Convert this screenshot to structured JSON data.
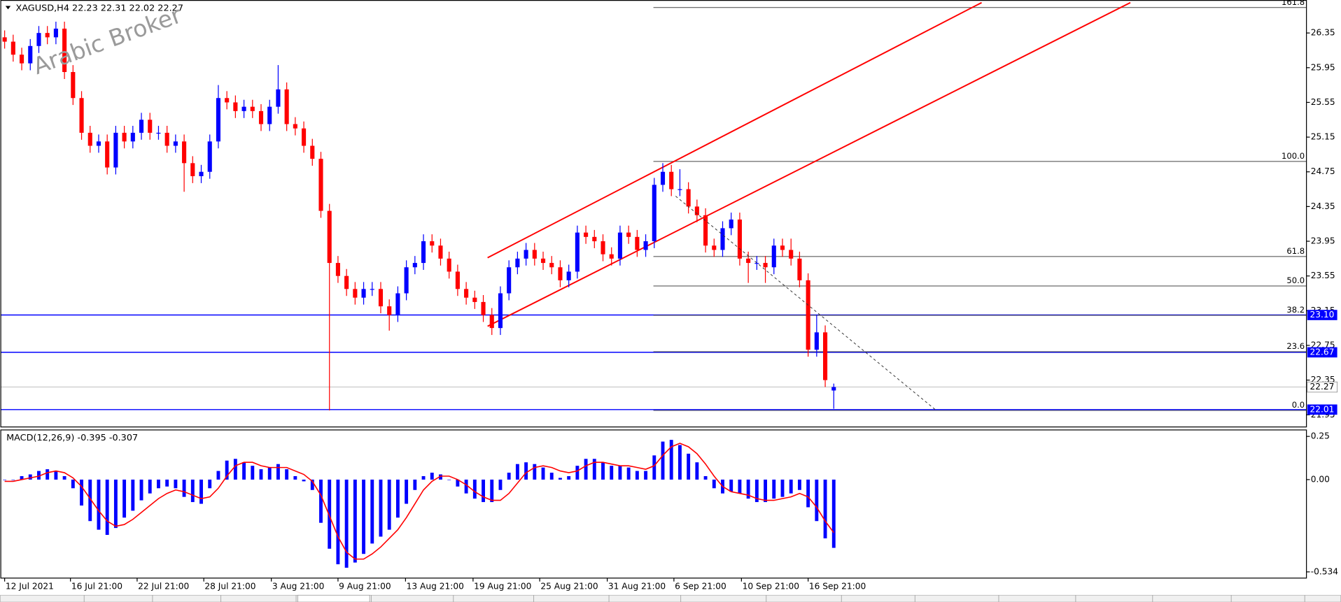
{
  "chart_data": {
    "type": "candlestick",
    "symbol_info": "XAGUSD,H4  22.23 22.31 22.02 22.27",
    "watermark": "Arabic Broker",
    "xlim": [
      -0.5,
      152.3
    ],
    "xticks": [
      {
        "value": 0,
        "label": "12 Jul 2021"
      },
      {
        "value": 7.7,
        "label": "16 Jul 21:00"
      },
      {
        "value": 15.5,
        "label": "22 Jul 21:00"
      },
      {
        "value": 23.3,
        "label": "28 Jul 21:00"
      },
      {
        "value": 31.2,
        "label": "3 Aug 21:00"
      },
      {
        "value": 39,
        "label": "9 Aug 21:00"
      },
      {
        "value": 46.9,
        "label": "13 Aug 21:00"
      },
      {
        "value": 54.8,
        "label": "19 Aug 21:00"
      },
      {
        "value": 62.6,
        "label": "25 Aug 21:00"
      },
      {
        "value": 70.5,
        "label": "31 Aug 21:00"
      },
      {
        "value": 78.3,
        "label": "6 Sep 21:00"
      },
      {
        "value": 86.2,
        "label": "10 Sep 21:00"
      },
      {
        "value": 94,
        "label": "16 Sep 21:00"
      }
    ],
    "ylim": [
      21.81,
      26.73
    ],
    "yticks": [
      26.35,
      25.95,
      25.55,
      25.15,
      24.75,
      24.35,
      23.95,
      23.55,
      23.15,
      22.75,
      22.35,
      21.95
    ],
    "up_color": "#0000ff",
    "down_color": "#ff0000",
    "open": [
      26.3,
      26.25,
      26.1,
      26.0,
      26.2,
      26.35,
      26.3,
      26.4,
      25.9,
      25.6,
      25.2,
      25.05,
      25.1,
      24.8,
      25.2,
      25.1,
      25.2,
      25.35,
      25.2,
      25.2,
      25.05,
      25.1,
      24.85,
      24.7,
      24.75,
      25.1,
      25.6,
      25.55,
      25.45,
      25.5,
      25.45,
      25.3,
      25.5,
      25.7,
      25.3,
      25.25,
      25.05,
      24.9,
      24.3,
      23.7,
      23.55,
      23.4,
      23.3,
      23.4,
      23.4,
      23.2,
      23.1,
      23.35,
      23.65,
      23.7,
      23.95,
      23.9,
      23.75,
      23.6,
      23.4,
      23.3,
      23.25,
      23.1,
      22.95,
      23.35,
      23.65,
      23.75,
      23.85,
      23.75,
      23.7,
      23.65,
      23.5,
      23.6,
      24.05,
      24.0,
      23.95,
      23.8,
      23.75,
      24.05,
      24.0,
      23.85,
      23.95,
      24.6,
      24.75,
      24.55,
      24.55,
      24.35,
      24.25,
      23.9,
      23.85,
      24.1,
      24.2,
      23.75,
      23.7,
      23.7,
      23.65,
      23.9,
      23.85,
      23.75,
      23.5,
      22.7,
      22.9,
      22.23
    ],
    "high": [
      26.38,
      26.33,
      26.18,
      26.28,
      26.43,
      26.43,
      26.48,
      26.48,
      25.98,
      25.68,
      25.28,
      25.18,
      25.18,
      25.28,
      25.28,
      25.28,
      25.43,
      25.43,
      25.28,
      25.28,
      25.18,
      25.18,
      24.93,
      24.83,
      25.18,
      25.75,
      25.68,
      25.63,
      25.58,
      25.58,
      25.53,
      25.58,
      25.98,
      25.78,
      25.38,
      25.33,
      25.13,
      24.98,
      24.38,
      23.78,
      23.63,
      23.48,
      23.48,
      23.48,
      23.48,
      23.28,
      23.43,
      23.73,
      23.78,
      24.03,
      24.03,
      23.98,
      23.83,
      23.68,
      23.48,
      23.38,
      23.33,
      23.18,
      23.43,
      23.73,
      23.83,
      23.93,
      23.93,
      23.83,
      23.78,
      23.73,
      23.68,
      24.13,
      24.13,
      24.08,
      24.03,
      23.88,
      24.13,
      24.13,
      24.08,
      24.03,
      24.68,
      24.85,
      24.83,
      24.78,
      24.63,
      24.43,
      24.33,
      23.98,
      24.18,
      24.28,
      24.28,
      23.83,
      23.78,
      23.78,
      23.98,
      23.98,
      23.98,
      23.83,
      23.58,
      23.1,
      22.98,
      22.31
    ],
    "low": [
      26.17,
      26.02,
      25.92,
      25.92,
      26.12,
      26.22,
      26.22,
      25.82,
      25.52,
      25.12,
      24.97,
      24.97,
      24.72,
      24.72,
      25.02,
      25.02,
      25.12,
      25.12,
      25.12,
      24.97,
      24.97,
      24.52,
      24.62,
      24.62,
      24.67,
      25.02,
      25.47,
      25.37,
      25.37,
      25.37,
      25.22,
      25.22,
      25.42,
      25.22,
      25.17,
      24.97,
      24.82,
      24.22,
      22.0,
      23.47,
      23.32,
      23.22,
      23.22,
      23.32,
      23.12,
      22.92,
      23.02,
      23.27,
      23.57,
      23.62,
      23.82,
      23.67,
      23.52,
      23.32,
      23.22,
      23.17,
      23.02,
      22.87,
      22.87,
      23.27,
      23.57,
      23.67,
      23.67,
      23.62,
      23.57,
      23.42,
      23.42,
      23.52,
      23.92,
      23.87,
      23.72,
      23.67,
      23.67,
      23.92,
      23.77,
      23.77,
      23.87,
      24.52,
      24.47,
      24.47,
      24.27,
      24.17,
      23.82,
      23.77,
      23.77,
      24.02,
      23.67,
      23.47,
      23.62,
      23.47,
      23.57,
      23.77,
      23.67,
      23.42,
      22.62,
      22.62,
      22.27,
      22.02
    ],
    "close": [
      26.25,
      26.1,
      26.0,
      26.2,
      26.35,
      26.3,
      26.4,
      25.9,
      25.6,
      25.2,
      25.05,
      25.1,
      24.8,
      25.2,
      25.1,
      25.2,
      25.35,
      25.2,
      25.2,
      25.05,
      25.1,
      24.85,
      24.7,
      24.75,
      25.1,
      25.6,
      25.55,
      25.45,
      25.5,
      25.45,
      25.3,
      25.5,
      25.7,
      25.3,
      25.25,
      25.05,
      24.9,
      24.3,
      23.7,
      23.55,
      23.4,
      23.3,
      23.4,
      23.4,
      23.2,
      23.1,
      23.35,
      23.65,
      23.7,
      23.95,
      23.9,
      23.75,
      23.6,
      23.4,
      23.3,
      23.25,
      23.1,
      22.95,
      23.35,
      23.65,
      23.75,
      23.85,
      23.75,
      23.7,
      23.65,
      23.5,
      23.6,
      24.05,
      24.0,
      23.95,
      23.8,
      23.75,
      24.05,
      24.0,
      23.85,
      23.95,
      24.6,
      24.75,
      24.55,
      24.55,
      24.35,
      24.25,
      23.9,
      23.85,
      24.1,
      24.2,
      23.75,
      23.7,
      23.7,
      23.65,
      23.9,
      23.85,
      23.75,
      23.5,
      22.7,
      22.9,
      22.35,
      22.27
    ],
    "levels": [
      {
        "value": 23.1,
        "label": "23.10",
        "color": "#0000ff"
      },
      {
        "value": 22.67,
        "label": "22.67",
        "color": "#0000ff"
      },
      {
        "value": 22.01,
        "label": "22.01",
        "color": "#0000ff"
      }
    ],
    "current_price": 22.27,
    "fibonacci": {
      "high": 24.87,
      "low": 22.0,
      "start": 75.9,
      "levels": [
        161.8,
        {
          "value": 100,
          "label": "100.0"
        },
        61.8,
        {
          "value": 50,
          "label": "50.0"
        },
        38.2,
        23.6,
        {
          "value": 0,
          "label": "0.0"
        }
      ]
    },
    "channels": [
      {
        "color": "#ff0000",
        "points": [
          [
            56.5,
            22.97
          ],
          [
            131.7,
            26.7
          ]
        ]
      },
      {
        "color": "#ff0000",
        "points": [
          [
            56.5,
            23.76
          ],
          [
            114.3,
            26.7
          ]
        ]
      }
    ],
    "trendline": {
      "dashed": true,
      "points": [
        [
          78.5,
          24.47
        ],
        [
          109,
          22.0
        ]
      ]
    },
    "macd": {
      "title": "MACD(12,26,9) -0.395 -0.307",
      "ylim": [
        -0.57,
        0.28
      ],
      "yticks": [
        0.25,
        {
          "value": 0,
          "label": "0.00"
        },
        -0.534
      ],
      "histogram": {
        "color": "#0000ff",
        "values": [
          0.0,
          0.0,
          0.02,
          0.03,
          0.05,
          0.06,
          0.05,
          0.02,
          -0.05,
          -0.15,
          -0.24,
          -0.29,
          -0.32,
          -0.28,
          -0.22,
          -0.18,
          -0.12,
          -0.08,
          -0.05,
          -0.04,
          -0.05,
          -0.1,
          -0.13,
          -0.14,
          -0.05,
          0.05,
          0.11,
          0.12,
          0.1,
          0.08,
          0.06,
          0.07,
          0.09,
          0.06,
          0.02,
          -0.01,
          -0.06,
          -0.25,
          -0.4,
          -0.49,
          -0.51,
          -0.48,
          -0.43,
          -0.37,
          -0.33,
          -0.29,
          -0.22,
          -0.14,
          -0.06,
          0.02,
          0.04,
          0.03,
          0.0,
          -0.04,
          -0.08,
          -0.11,
          -0.13,
          -0.13,
          -0.06,
          0.04,
          0.09,
          0.1,
          0.09,
          0.07,
          0.04,
          0.01,
          0.02,
          0.08,
          0.12,
          0.12,
          0.1,
          0.08,
          0.08,
          0.07,
          0.05,
          0.05,
          0.14,
          0.22,
          0.23,
          0.2,
          0.15,
          0.1,
          0.02,
          -0.05,
          -0.08,
          -0.07,
          -0.08,
          -0.11,
          -0.13,
          -0.13,
          -0.11,
          -0.1,
          -0.08,
          -0.06,
          -0.16,
          -0.24,
          -0.34,
          -0.395
        ]
      },
      "signal": {
        "color": "#ff0000",
        "values": [
          -0.01,
          -0.01,
          0.0,
          0.01,
          0.02,
          0.04,
          0.05,
          0.04,
          0.01,
          -0.04,
          -0.11,
          -0.18,
          -0.24,
          -0.27,
          -0.26,
          -0.23,
          -0.19,
          -0.15,
          -0.11,
          -0.08,
          -0.06,
          -0.07,
          -0.09,
          -0.11,
          -0.1,
          -0.05,
          0.02,
          0.08,
          0.1,
          0.1,
          0.08,
          0.07,
          0.07,
          0.07,
          0.05,
          0.03,
          -0.01,
          -0.09,
          -0.21,
          -0.33,
          -0.42,
          -0.46,
          -0.46,
          -0.43,
          -0.39,
          -0.34,
          -0.29,
          -0.22,
          -0.14,
          -0.06,
          -0.01,
          0.02,
          0.02,
          0.0,
          -0.03,
          -0.07,
          -0.1,
          -0.12,
          -0.12,
          -0.08,
          -0.02,
          0.04,
          0.07,
          0.08,
          0.07,
          0.05,
          0.04,
          0.05,
          0.08,
          0.1,
          0.1,
          0.09,
          0.08,
          0.08,
          0.07,
          0.06,
          0.08,
          0.14,
          0.19,
          0.21,
          0.19,
          0.15,
          0.09,
          0.02,
          -0.04,
          -0.07,
          -0.08,
          -0.09,
          -0.11,
          -0.12,
          -0.12,
          -0.11,
          -0.1,
          -0.08,
          -0.1,
          -0.16,
          -0.24,
          -0.307
        ]
      }
    }
  }
}
